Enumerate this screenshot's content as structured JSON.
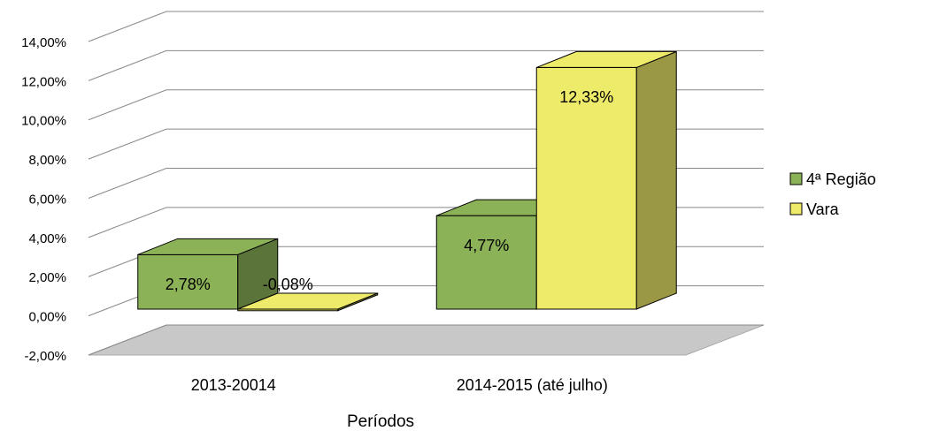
{
  "chart_data": {
    "type": "bar3d",
    "xlabel": "Períodos",
    "categories": [
      "2013-20014",
      "2014-2015 (até julho)"
    ],
    "series": [
      {
        "name": "4ª Região",
        "color": "#8cb257",
        "values": [
          2.78,
          4.77
        ],
        "value_labels": [
          "2,78%",
          "4,77%"
        ]
      },
      {
        "name": "Vara",
        "color": "#eeea6a",
        "values": [
          -0.08,
          12.33
        ],
        "value_labels": [
          "-0,08%",
          "12,33%"
        ]
      }
    ],
    "ylim": [
      -2,
      14
    ],
    "yticks": [
      {
        "value": -2,
        "label": "-2,00%"
      },
      {
        "value": 0,
        "label": "0,00%"
      },
      {
        "value": 2,
        "label": "2,00%"
      },
      {
        "value": 4,
        "label": "4,00%"
      },
      {
        "value": 6,
        "label": "6,00%"
      },
      {
        "value": 8,
        "label": "8,00%"
      },
      {
        "value": 10,
        "label": "10,00%"
      },
      {
        "value": 12,
        "label": "12,00%"
      },
      {
        "value": 14,
        "label": "14,00%"
      }
    ],
    "grid": true,
    "legend": "right"
  }
}
